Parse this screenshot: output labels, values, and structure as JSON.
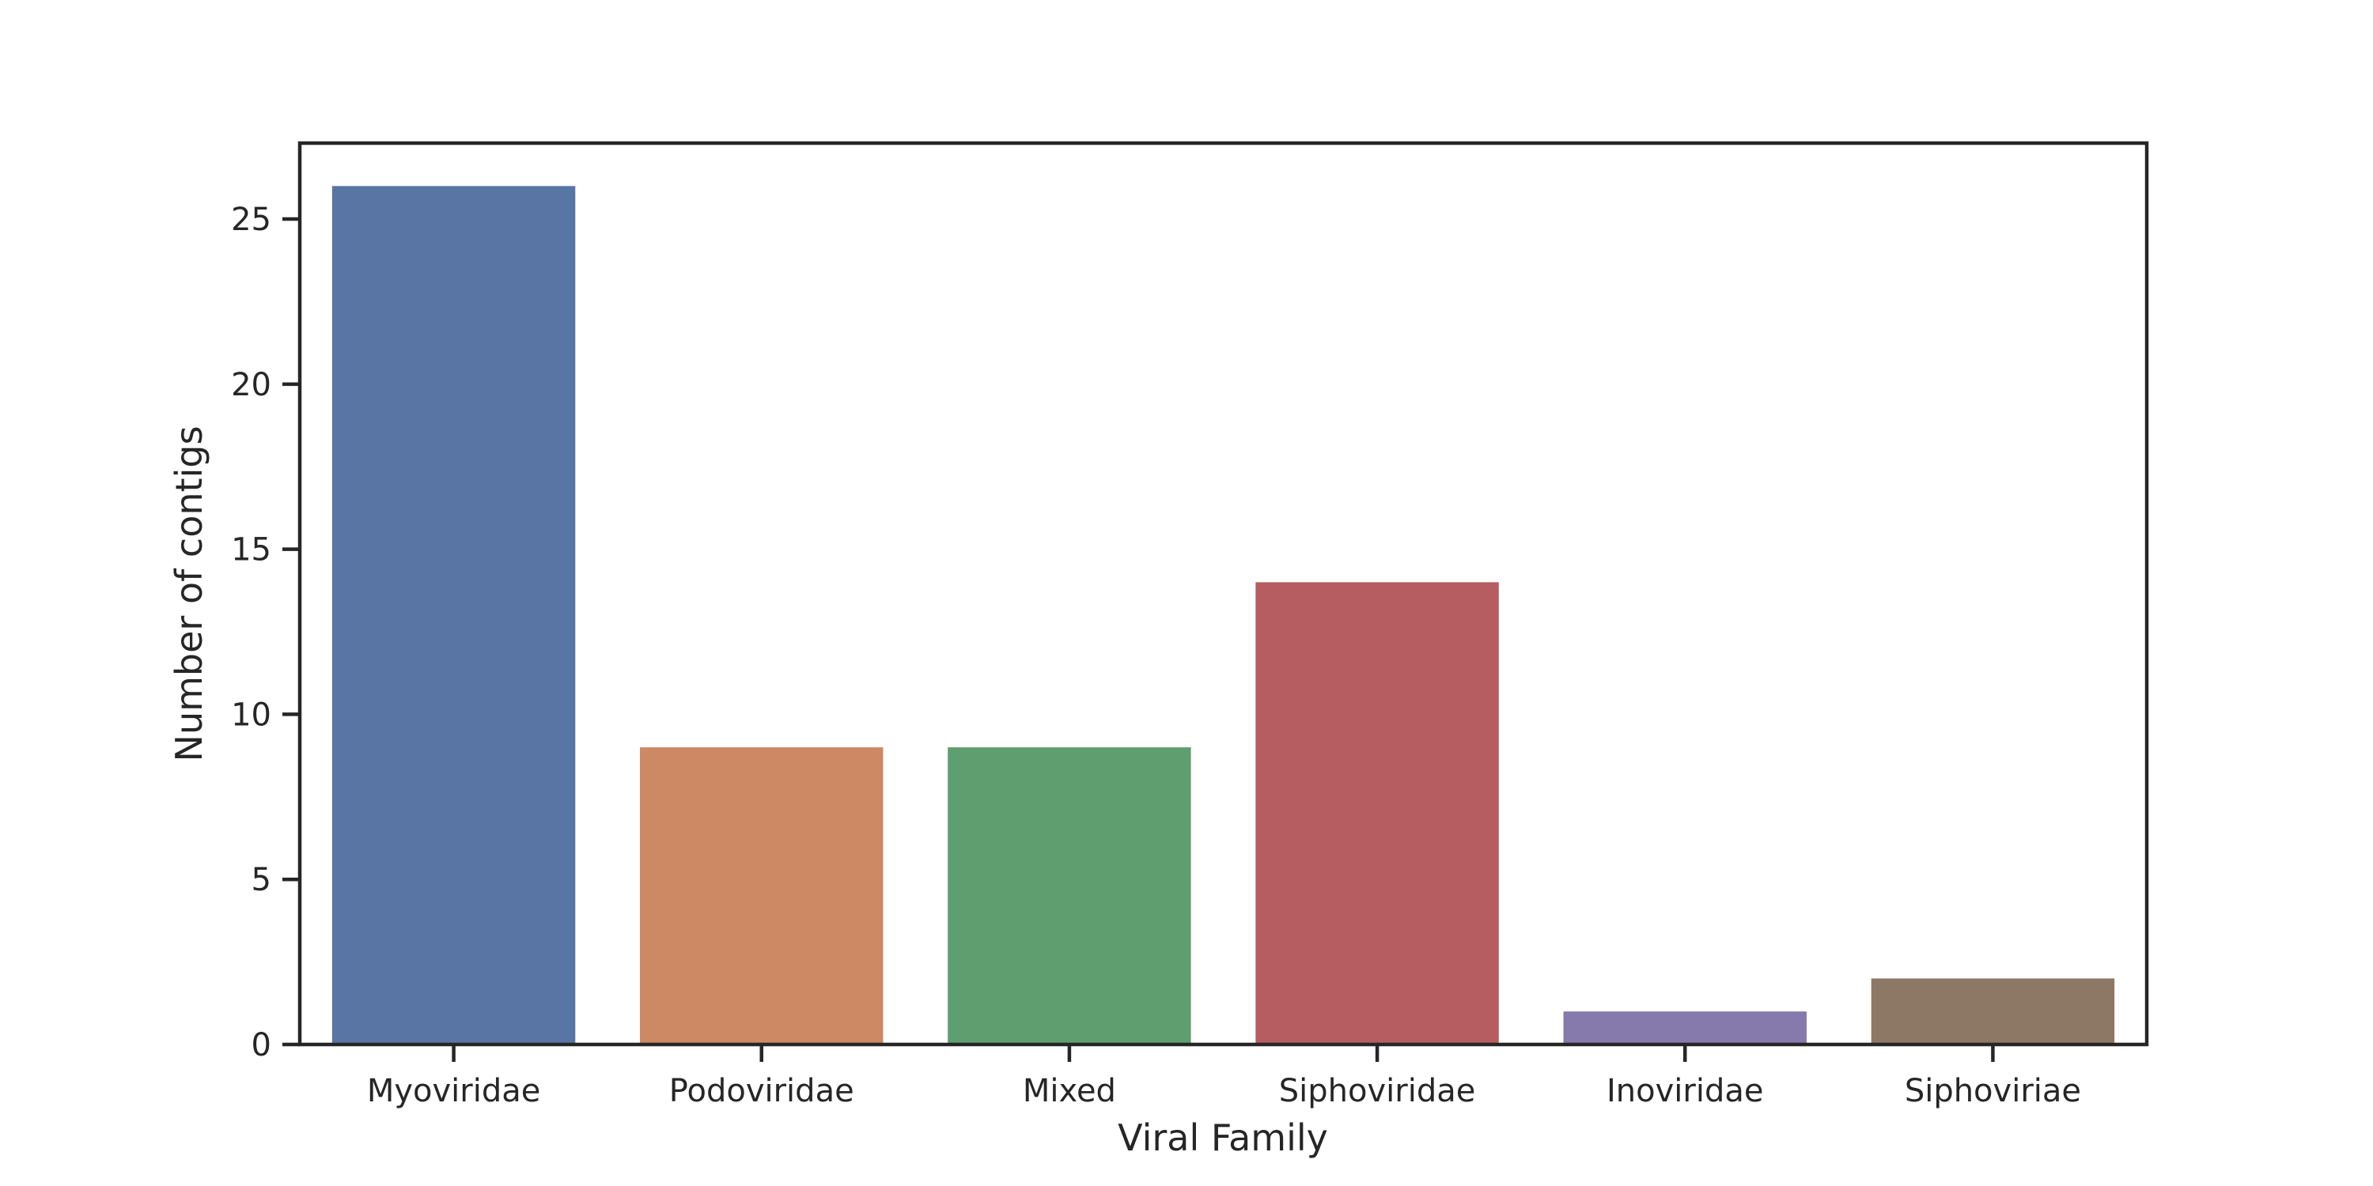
{
  "chart_data": {
    "type": "bar",
    "title": "",
    "xlabel": "Viral Family",
    "ylabel": "Number of contigs",
    "categories": [
      "Myoviridae",
      "Podoviridae",
      "Mixed",
      "Siphoviridae",
      "Inoviridae",
      "Siphoviriae"
    ],
    "values": [
      26,
      9,
      9,
      14,
      1,
      2
    ],
    "colors": [
      "#5875a4",
      "#cc8963",
      "#5f9e6e",
      "#b55d60",
      "#857aab",
      "#8d7866"
    ],
    "ylim": [
      0,
      27.3
    ],
    "yticks": [
      0,
      5,
      10,
      15,
      20,
      25
    ],
    "grid": false,
    "legend": null
  }
}
